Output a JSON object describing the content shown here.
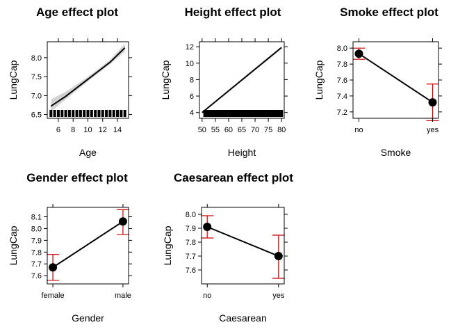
{
  "chart_data": [
    {
      "type": "line",
      "title": "Age effect plot",
      "xlabel": "Age",
      "ylabel": "LungCap",
      "xlim": [
        4.5,
        15.5
      ],
      "ylim": [
        6.4,
        8.42
      ],
      "xticks": [
        6,
        8,
        10,
        12,
        14
      ],
      "yticks": [
        6.5,
        7.0,
        7.5,
        8.0
      ],
      "ytick_labels": [
        "6.5",
        "7.0",
        "7.5",
        "8.0"
      ],
      "line_x": [
        5,
        7,
        9,
        11,
        13,
        15
      ],
      "line_y": [
        6.72,
        6.98,
        7.28,
        7.58,
        7.88,
        8.26
      ],
      "band_lower": [
        6.58,
        6.9,
        7.22,
        7.53,
        7.83,
        8.16
      ],
      "band_upper": [
        6.9,
        7.1,
        7.36,
        7.64,
        7.94,
        8.37
      ],
      "rug": [
        5,
        5.5,
        6,
        6.5,
        7,
        7.5,
        8,
        8.5,
        9,
        9.5,
        10,
        10.5,
        11,
        11.5,
        12,
        12.5,
        13,
        13.5,
        14,
        14.5,
        15
      ],
      "colors": {
        "line": "#000000",
        "band": "#d3d3d3"
      }
    },
    {
      "type": "line",
      "title": "Height effect plot",
      "xlabel": "Height",
      "ylabel": "LungCap",
      "xlim": [
        49,
        81
      ],
      "ylim": [
        3.3,
        12.6
      ],
      "xticks": [
        50,
        55,
        60,
        65,
        70,
        75,
        80
      ],
      "yticks": [
        4,
        6,
        8,
        10,
        12
      ],
      "ytick_labels": [
        "4",
        "6",
        "8",
        "10",
        "12"
      ],
      "line_x": [
        50,
        80
      ],
      "line_y": [
        4.0,
        11.9
      ],
      "band_lower": [
        3.9,
        11.75
      ],
      "band_upper": [
        4.1,
        12.05
      ],
      "rug": [
        51,
        52,
        53,
        54,
        55,
        56,
        57,
        58,
        59,
        60,
        61,
        62,
        63,
        64,
        65,
        66,
        67,
        68,
        69,
        70,
        71,
        72,
        73,
        74,
        75,
        76,
        77,
        78,
        79,
        80
      ],
      "colors": {
        "line": "#000000",
        "band": "#d3d3d3"
      }
    },
    {
      "type": "line",
      "title": "Smoke effect plot",
      "xlabel": "Smoke",
      "ylabel": "LungCap",
      "categories": [
        "no",
        "yes"
      ],
      "ylim": [
        7.12,
        8.08
      ],
      "yticks": [
        7.2,
        7.4,
        7.6,
        7.8,
        8.0
      ],
      "ytick_labels": [
        "7.2",
        "7.4",
        "7.6",
        "7.8",
        "8.0"
      ],
      "values": [
        7.93,
        7.32
      ],
      "lower": [
        7.86,
        7.09
      ],
      "upper": [
        8.0,
        7.55
      ],
      "colors": {
        "line": "#000000",
        "error": "#cc0000"
      }
    },
    {
      "type": "line",
      "title": "Gender effect plot",
      "xlabel": "Gender",
      "ylabel": "LungCap",
      "categories": [
        "female",
        "male"
      ],
      "ylim": [
        7.53,
        8.18
      ],
      "yticks": [
        7.6,
        7.7,
        7.8,
        7.9,
        8.0,
        8.1
      ],
      "ytick_labels": [
        "7.6",
        "7.7",
        "7.8",
        "7.9",
        "8.0",
        "8.1"
      ],
      "values": [
        7.67,
        8.06
      ],
      "lower": [
        7.56,
        7.95
      ],
      "upper": [
        7.78,
        8.16
      ],
      "colors": {
        "line": "#000000",
        "error": "#cc0000"
      }
    },
    {
      "type": "line",
      "title": "Caesarean effect plot",
      "xlabel": "Caesarean",
      "ylabel": "LungCap",
      "categories": [
        "no",
        "yes"
      ],
      "ylim": [
        7.5,
        8.05
      ],
      "yticks": [
        7.6,
        7.7,
        7.8,
        7.9,
        8.0
      ],
      "ytick_labels": [
        "7.6",
        "7.7",
        "7.8",
        "7.9",
        "8.0"
      ],
      "values": [
        7.91,
        7.7
      ],
      "lower": [
        7.83,
        7.54
      ],
      "upper": [
        7.99,
        7.85
      ],
      "colors": {
        "line": "#000000",
        "error": "#cc0000"
      }
    }
  ]
}
